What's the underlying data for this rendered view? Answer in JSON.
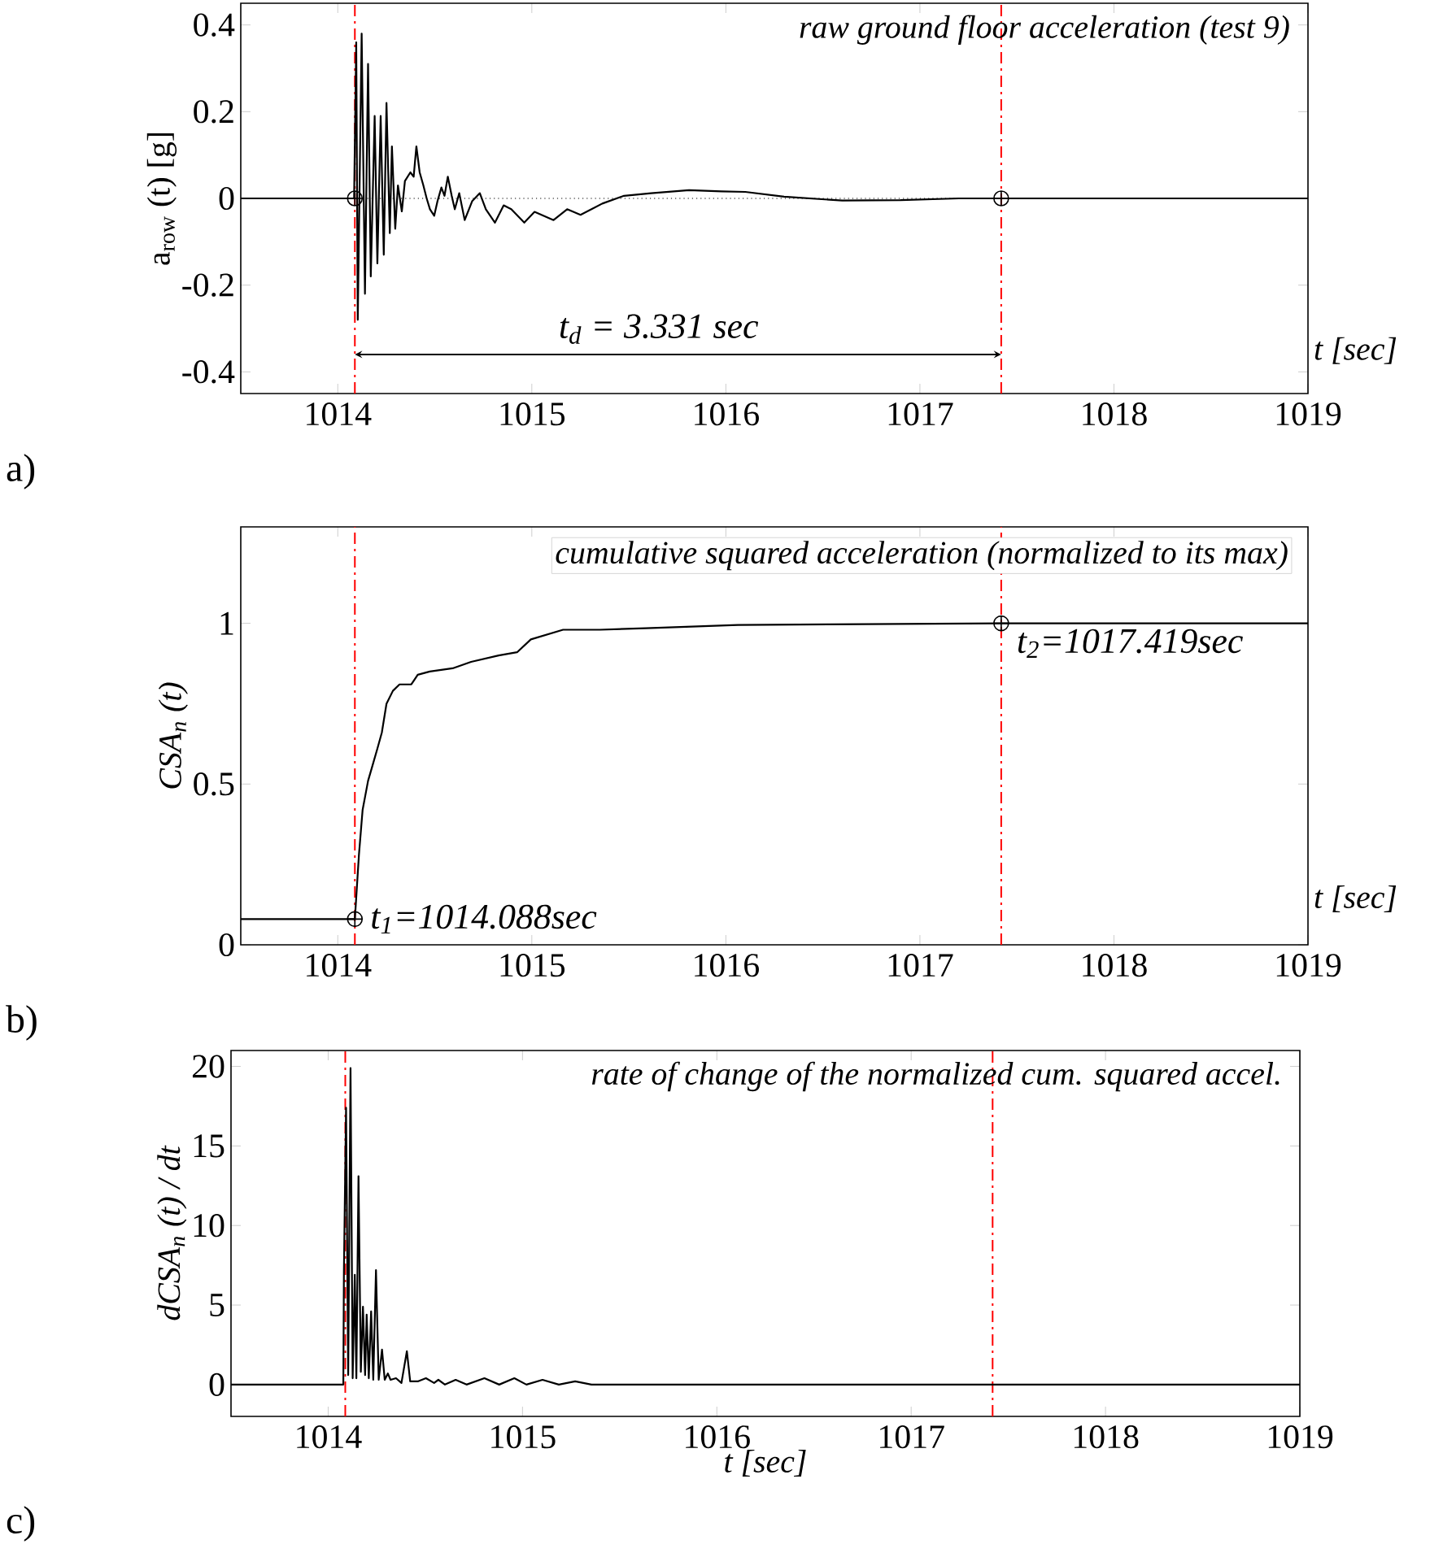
{
  "chart_data": [
    {
      "type": "line",
      "title": "raw  ground floor acceleration (test 9)",
      "xlabel": "t [sec]",
      "ylabel": "a$_{row}$ (t)  [g]",
      "xlim": [
        1013.5,
        1019
      ],
      "xticks": [
        1014,
        1015,
        1016,
        1017,
        1018,
        1019
      ],
      "ylim": [
        -0.45,
        0.45
      ],
      "yticks": [
        -0.4,
        -0.2,
        0,
        0.2,
        0.4
      ],
      "series": [
        {
          "color": "#000000",
          "x": [
            1013.5,
            1014.084,
            1014.095,
            1014.103,
            1014.123,
            1014.14,
            1014.156,
            1014.17,
            1014.19,
            1014.204,
            1014.221,
            1014.237,
            1014.251,
            1014.268,
            1014.279,
            1014.296,
            1014.31,
            1014.33,
            1014.346,
            1014.374,
            1014.391,
            1014.405,
            1014.422,
            1014.441,
            1014.458,
            1014.475,
            1014.497,
            1014.514,
            1014.534,
            1014.55,
            1014.567,
            1014.587,
            1014.603,
            1014.626,
            1014.654,
            1014.693,
            1014.732,
            1014.763,
            1014.81,
            1014.855,
            1014.894,
            1014.961,
            1015.014,
            1015.112,
            1015.182,
            1015.251,
            1015.363,
            1015.475,
            1015.615,
            1015.81,
            1015.978,
            1016.1,
            1016.3,
            1016.6,
            1016.9,
            1017.2,
            1017.419,
            1019
          ],
          "values": [
            0,
            0,
            0.36,
            -0.28,
            0.38,
            -0.22,
            0.31,
            -0.18,
            0.19,
            -0.15,
            0.19,
            -0.13,
            0.22,
            -0.08,
            0.12,
            -0.07,
            0.03,
            -0.03,
            0.04,
            0.06,
            0.05,
            0.12,
            0.06,
            0.03,
            0,
            -0.025,
            -0.04,
            -0.006,
            0.025,
            0.006,
            0.05,
            0.006,
            -0.025,
            0.012,
            -0.05,
            -0.006,
            0.012,
            -0.025,
            -0.056,
            -0.016,
            -0.025,
            -0.056,
            -0.031,
            -0.05,
            -0.025,
            -0.038,
            -0.012,
            0.006,
            0.012,
            0.019,
            0.016,
            0.015,
            0.004,
            -0.005,
            -0.004,
            0,
            0,
            0
          ]
        },
        {
          "type": "scatter",
          "color": "#000000",
          "marker": "cross",
          "x": [
            1014.088,
            1017.419
          ],
          "values": [
            0,
            0
          ]
        }
      ],
      "ref_lines": [
        {
          "axis": "x",
          "value": 1014.088,
          "color": "#ff0000",
          "line_style": "dashdot"
        },
        {
          "axis": "x",
          "value": 1017.419,
          "color": "#ff0000",
          "line_style": "dashdot"
        },
        {
          "axis": "y",
          "value": 0,
          "color": "#000000",
          "line_style": "dotted"
        }
      ],
      "annotations": [
        "t$_{d}$ = 3.331 sec",
        "a)"
      ]
    },
    {
      "type": "line",
      "title": "cumulative squared acceleration (normalized to its max)",
      "xlabel": "t [sec]",
      "ylabel": "CSA$_{n}$ (t)",
      "xlim": [
        1013.5,
        1019
      ],
      "xticks": [
        1014,
        1015,
        1016,
        1017,
        1018,
        1019
      ],
      "ylim": [
        0,
        1.3
      ],
      "yticks": [
        0,
        0.5,
        1
      ],
      "series": [
        {
          "color": "#000000",
          "x": [
            1013.5,
            1014.088,
            1014.109,
            1014.128,
            1014.156,
            1014.18,
            1014.204,
            1014.227,
            1014.251,
            1014.284,
            1014.318,
            1014.379,
            1014.412,
            1014.474,
            1014.592,
            1014.687,
            1014.829,
            1014.924,
            1014.995,
            1015.161,
            1015.351,
            1015.588,
            1016.062,
            1016.536,
            1017.419,
            1019
          ],
          "values": [
            0.08,
            0.08,
            0.28,
            0.42,
            0.51,
            0.56,
            0.61,
            0.66,
            0.75,
            0.79,
            0.81,
            0.81,
            0.84,
            0.85,
            0.86,
            0.88,
            0.9,
            0.91,
            0.95,
            0.98,
            0.98,
            0.985,
            0.995,
            0.997,
            1,
            1
          ]
        },
        {
          "type": "scatter",
          "color": "#000000",
          "marker": "cross",
          "x": [
            1014.088,
            1017.419
          ],
          "values": [
            0.08,
            1
          ]
        }
      ],
      "ref_lines": [
        {
          "axis": "x",
          "value": 1014.088,
          "color": "#ff0000",
          "line_style": "dashdot"
        },
        {
          "axis": "x",
          "value": 1017.419,
          "color": "#ff0000",
          "line_style": "dashdot"
        }
      ],
      "annotations": [
        {
          "text": "t$_{1}$=1014.088sec",
          "x": 1014.088,
          "y": 0.08
        },
        {
          "text": "t$_{2}$=1017.419sec",
          "x": 1017.419,
          "y": 1
        },
        "b)"
      ]
    },
    {
      "type": "line",
      "title": "rate of change of the normalized cum. squared accel.",
      "xlabel": "t [sec]",
      "ylabel": "dCSA$_{n}$ (t) / dt",
      "xlim": [
        1013.5,
        1019
      ],
      "xticks": [
        1014,
        1015,
        1016,
        1017,
        1018,
        1019
      ],
      "ylim": [
        -2,
        21
      ],
      "yticks": [
        0,
        5,
        10,
        15,
        20
      ],
      "series": [
        {
          "color": "#000000",
          "x": [
            1013.5,
            1014.078,
            1014.081,
            1014.092,
            1014.103,
            1014.115,
            1014.126,
            1014.137,
            1014.145,
            1014.156,
            1014.168,
            1014.179,
            1014.19,
            1014.198,
            1014.209,
            1014.221,
            1014.232,
            1014.246,
            1014.26,
            1014.277,
            1014.291,
            1014.307,
            1014.321,
            1014.349,
            1014.377,
            1014.405,
            1014.422,
            1014.461,
            1014.503,
            1014.545,
            1014.567,
            1014.601,
            1014.656,
            1014.712,
            1014.804,
            1014.88,
            1014.958,
            1015.02,
            1015.103,
            1015.187,
            1015.271,
            1015.355,
            1015.466,
            1019
          ],
          "values": [
            0,
            0,
            7.1,
            17.4,
            0.6,
            19.9,
            0.4,
            6.9,
            0.4,
            13.1,
            0.8,
            4.9,
            0.6,
            4.4,
            0.4,
            4.6,
            0.3,
            7.2,
            0.3,
            2.2,
            0.3,
            0.7,
            0.3,
            0.4,
            0.1,
            2.1,
            0.2,
            0.2,
            0.4,
            0.1,
            0.3,
            0,
            0.3,
            0,
            0.4,
            0,
            0.4,
            0,
            0.3,
            0,
            0.2,
            0,
            0,
            0
          ]
        }
      ],
      "ref_lines": [
        {
          "axis": "x",
          "value": 1014.088,
          "color": "#ff0000",
          "line_style": "dashdot"
        },
        {
          "axis": "x",
          "value": 1017.419,
          "color": "#ff0000",
          "line_style": "dashdot"
        }
      ],
      "annotations": [
        "c)"
      ]
    }
  ]
}
